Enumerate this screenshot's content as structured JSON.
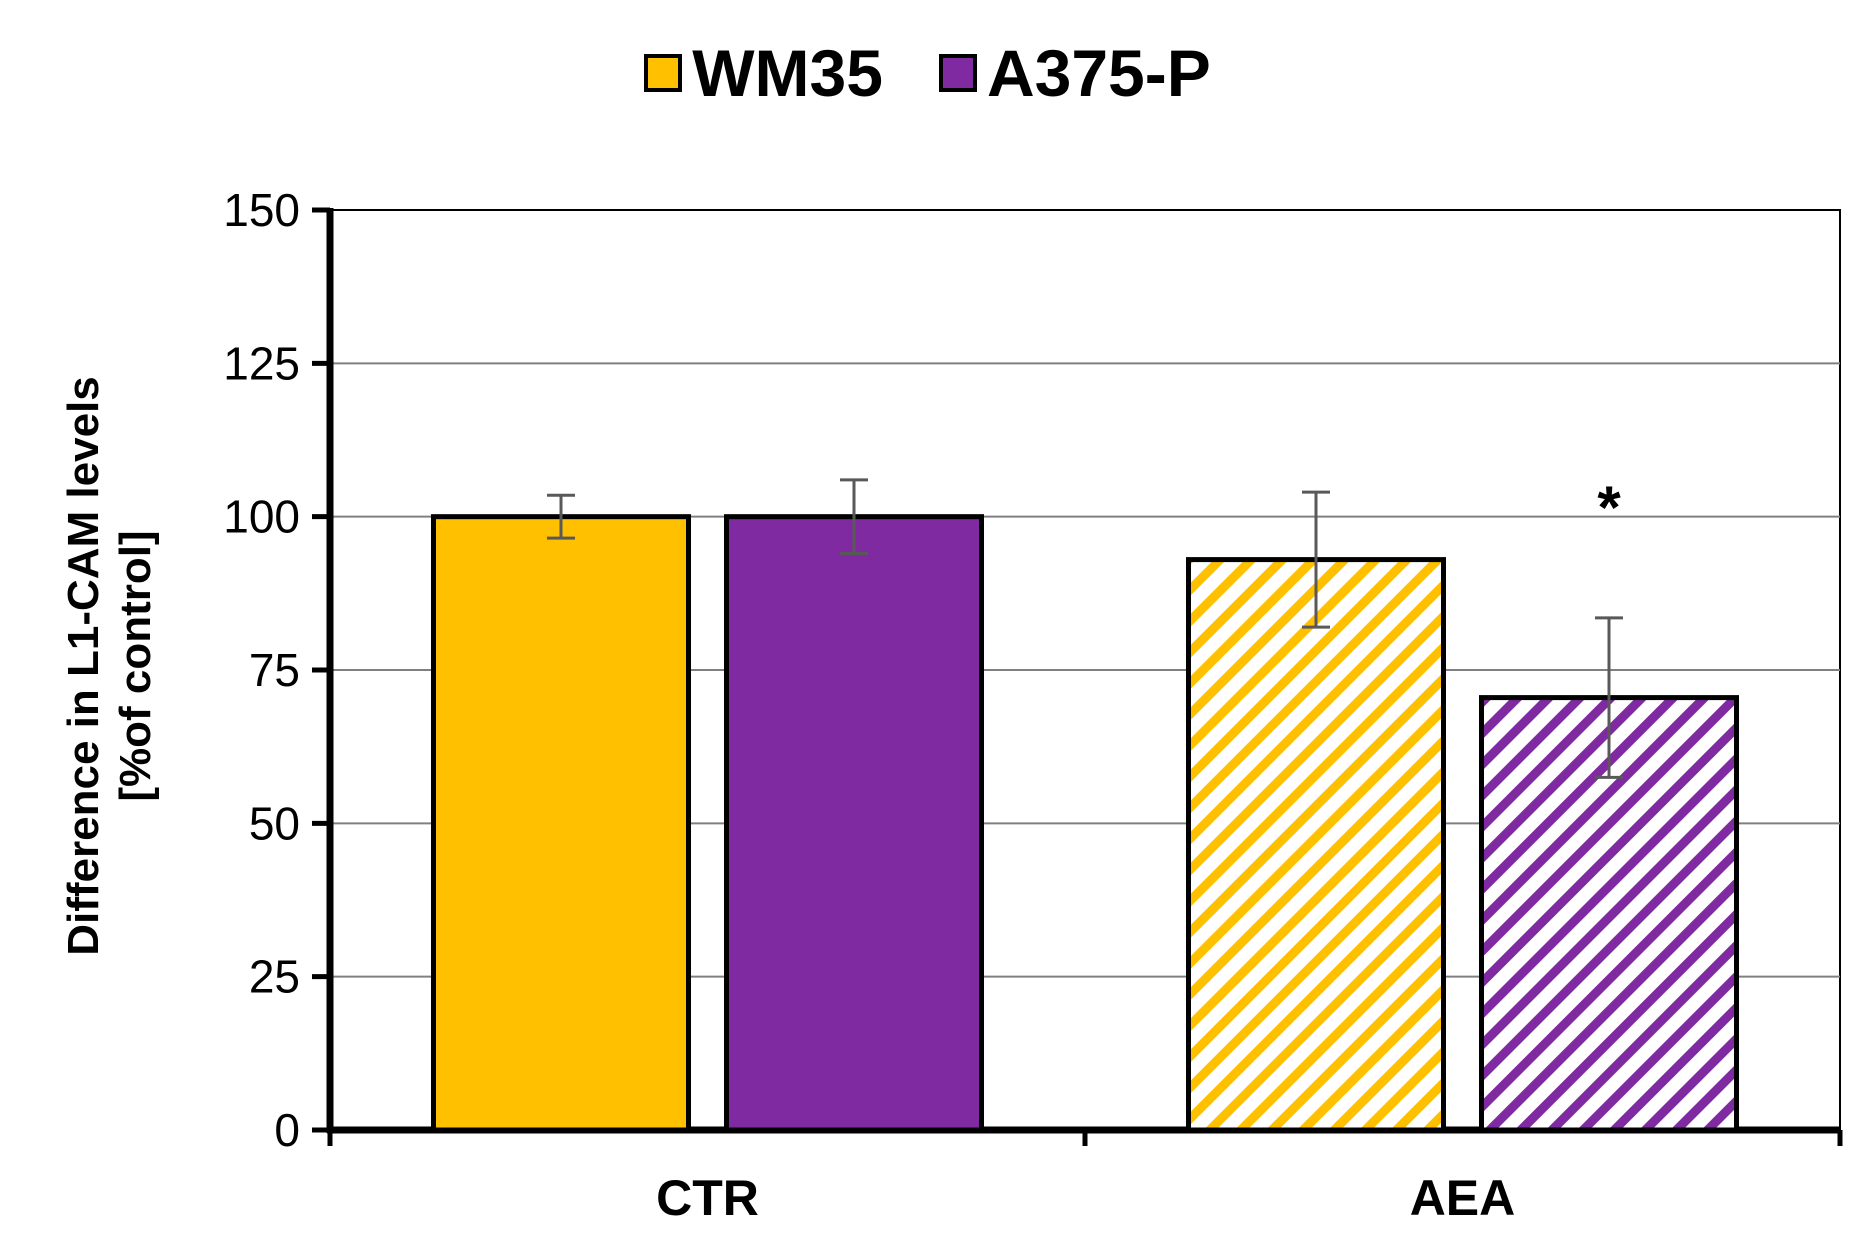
{
  "chart_data": {
    "type": "bar",
    "categories": [
      "CTR",
      "AEA"
    ],
    "series": [
      {
        "name": "WM35",
        "values": [
          100,
          93
        ],
        "errors": [
          3.5,
          11
        ],
        "color": "#FFC000",
        "pattern": [
          "solid",
          "hatched"
        ]
      },
      {
        "name": "A375-P",
        "values": [
          100,
          70.5
        ],
        "errors": [
          6,
          13
        ],
        "color": "#7F2AA0",
        "pattern": [
          "solid",
          "hatched"
        ]
      }
    ],
    "ylim": [
      0,
      150
    ],
    "yticks": [
      0,
      25,
      50,
      75,
      100,
      125,
      150
    ],
    "ylabel_lines": [
      "Difference in L1-CAM levels",
      "[%of control]"
    ],
    "xlabel": "",
    "grid": true,
    "legend_position": "top-center",
    "annotations": [
      {
        "text": "*",
        "category": "AEA",
        "series": "A375-P"
      }
    ]
  }
}
